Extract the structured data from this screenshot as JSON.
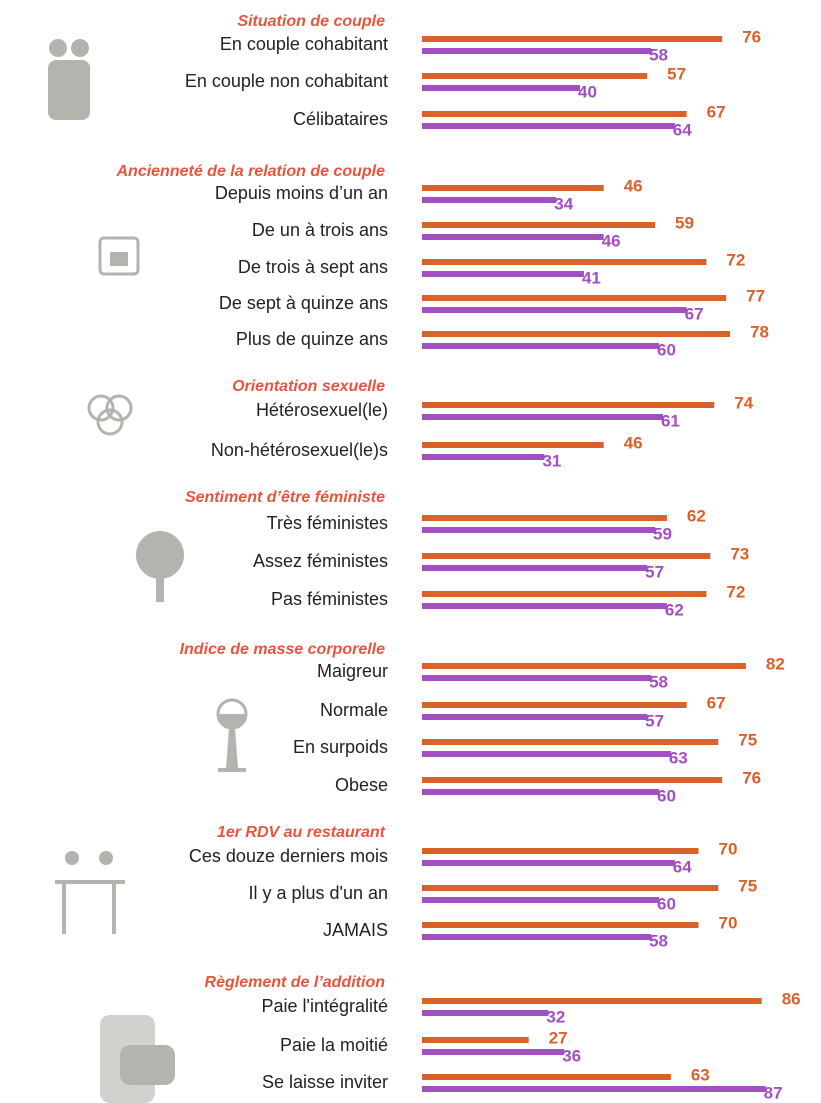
{
  "chart_data": [
    {
      "type": "bar",
      "title": "Situation de couple",
      "categories": [
        "En couple cohabitant",
        "En couple non cohabitant",
        "Célibataires"
      ],
      "series": [
        {
          "color": "#d9622b",
          "values": [
            76,
            57,
            67
          ]
        },
        {
          "color": "#a24fc2",
          "values": [
            58,
            40,
            64
          ]
        }
      ]
    },
    {
      "type": "bar",
      "title": "Ancienneté de la relation de couple",
      "categories": [
        "Depuis moins d’un an",
        "De un à trois ans",
        "De trois à sept ans",
        "De sept à quinze ans",
        "Plus de quinze ans"
      ],
      "series": [
        {
          "color": "#d9622b",
          "values": [
            46,
            59,
            72,
            77,
            78
          ]
        },
        {
          "color": "#a24fc2",
          "values": [
            34,
            46,
            41,
            67,
            60
          ]
        }
      ]
    },
    {
      "type": "bar",
      "title": "Orientation sexuelle",
      "categories": [
        "Hétérosexuel(le)",
        "Non-hétérosexuel(le)s"
      ],
      "series": [
        {
          "color": "#d9622b",
          "values": [
            74,
            46
          ]
        },
        {
          "color": "#a24fc2",
          "values": [
            61,
            31
          ]
        }
      ]
    },
    {
      "type": "bar",
      "title": "Sentiment d’être féministe",
      "categories": [
        "Très féministes",
        "Assez féministes",
        "Pas féministes"
      ],
      "series": [
        {
          "color": "#d9622b",
          "values": [
            62,
            73,
            72
          ]
        },
        {
          "color": "#a24fc2",
          "values": [
            59,
            57,
            62
          ]
        }
      ]
    },
    {
      "type": "bar",
      "title": "Indice de masse corporelle",
      "categories": [
        "Maigreur",
        "Normale",
        "En surpoids",
        "Obese"
      ],
      "series": [
        {
          "color": "#d9622b",
          "values": [
            82,
            67,
            75,
            76
          ]
        },
        {
          "color": "#a24fc2",
          "values": [
            58,
            57,
            63,
            60
          ]
        }
      ]
    },
    {
      "type": "bar",
      "title": "1er RDV au restaurant",
      "categories": [
        "Ces douze derniers mois",
        "Il y a plus d'un an",
        "JAMAIS"
      ],
      "series": [
        {
          "color": "#d9622b",
          "values": [
            70,
            75,
            70
          ]
        },
        {
          "color": "#a24fc2",
          "values": [
            64,
            60,
            58
          ]
        }
      ]
    },
    {
      "type": "bar",
      "title": "Règlement de l’addition",
      "categories": [
        "Paie l'intégralité",
        "Paie la moitié",
        "Se laisse inviter"
      ],
      "series": [
        {
          "color": "#d9622b",
          "values": [
            86,
            27,
            63
          ]
        },
        {
          "color": "#a24fc2",
          "values": [
            32,
            36,
            87
          ]
        }
      ]
    }
  ]
}
